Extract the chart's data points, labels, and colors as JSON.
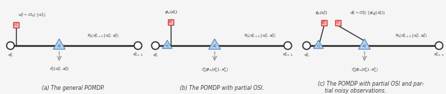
{
  "bg_color": "#f5f5f5",
  "subfig_a_caption": "(a) The general POMDP.",
  "subfig_b_caption": "(b) The POMDP with partial OSI.",
  "subfig_c_caption_1": "(c) The POMDP with partial OSI and par-",
  "subfig_c_caption_2": "tial noisy observations.",
  "line_color": "#2c2c2c",
  "tri_face": "#b8d4ee",
  "tri_edge": "#6090c0",
  "box_face": "#f8c0c0",
  "box_edge": "#d04040",
  "arrow_color": "#808080",
  "text_color": "#2c2c2c",
  "red_text": "#c83030",
  "caption_color": "#404040"
}
